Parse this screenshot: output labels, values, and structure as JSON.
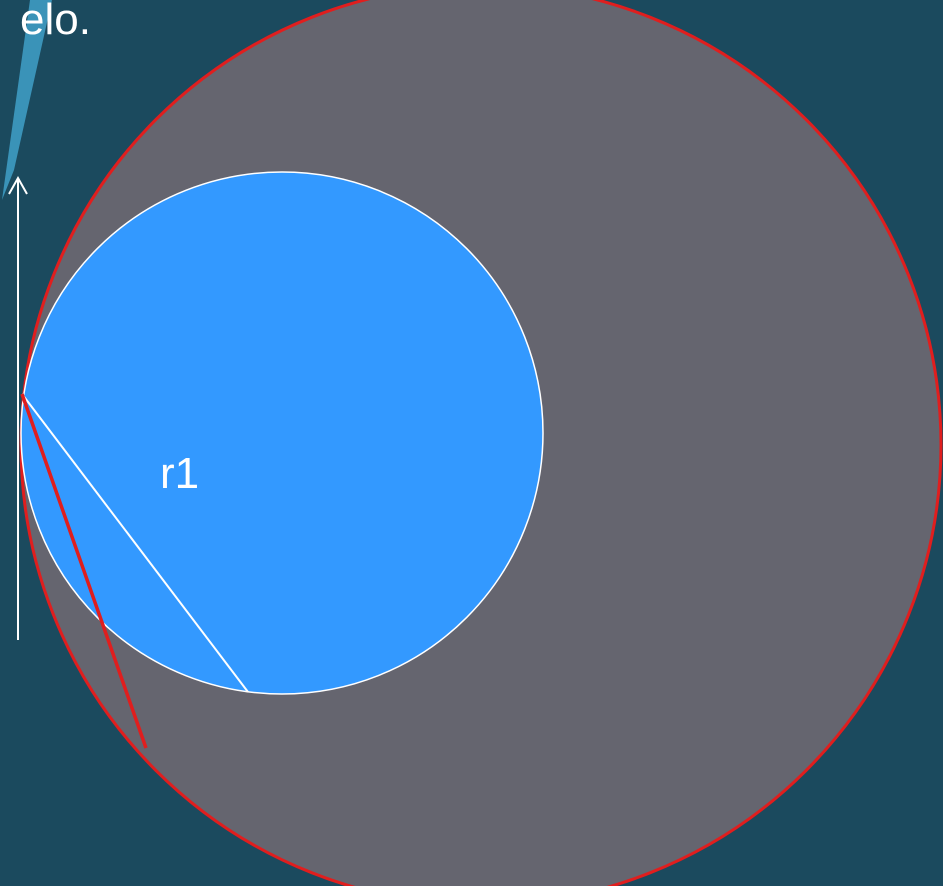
{
  "slide": {
    "heading_fragment": "elo."
  },
  "diagram": {
    "radius_label": "r1",
    "colors": {
      "background": "#1b4a5e",
      "accent_stripe": "#3a93b8",
      "large_circle_fill": "#65656f",
      "large_circle_stroke": "#e01e1e",
      "small_circle_fill": "#3399ff",
      "small_circle_stroke": "#ffffff",
      "chord_line": "#e01e1e",
      "radius_line": "#ffffff",
      "arrow": "#ffffff"
    }
  }
}
